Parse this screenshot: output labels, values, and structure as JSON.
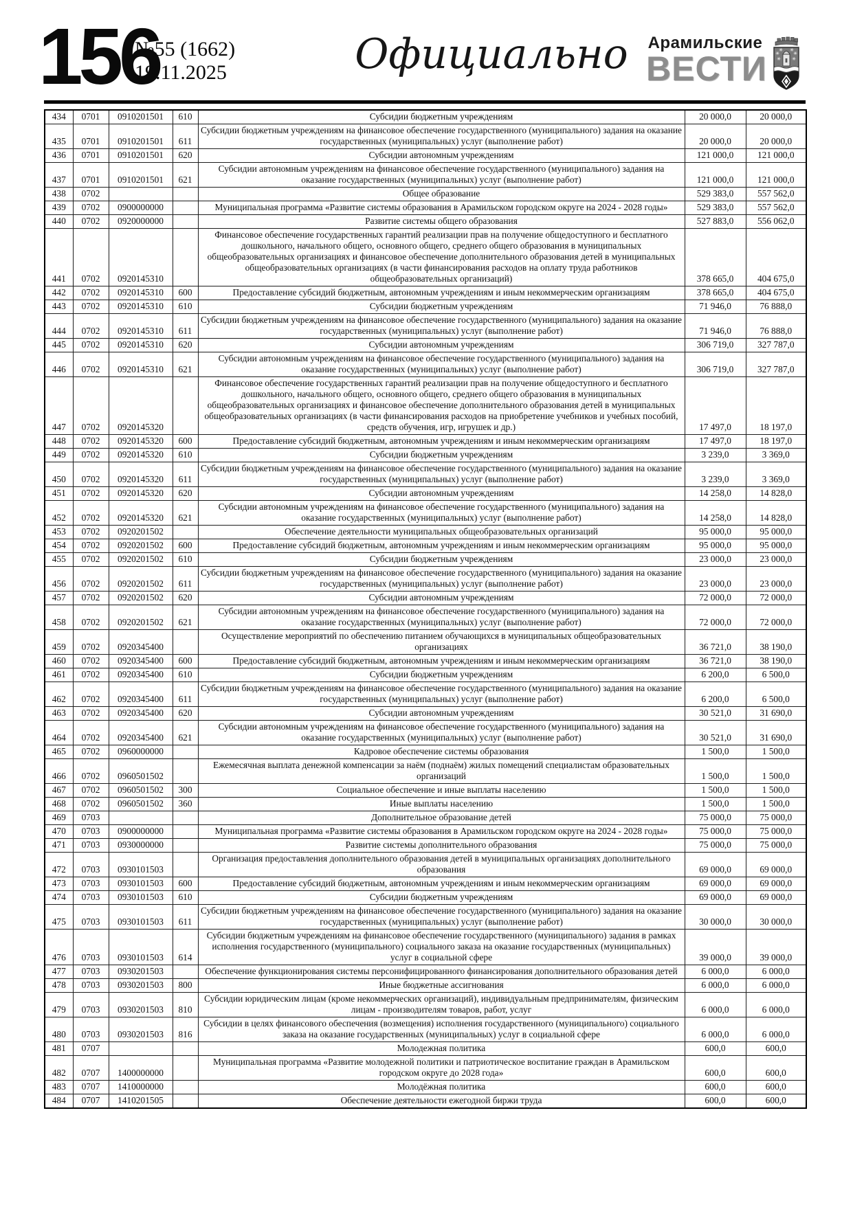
{
  "header": {
    "page_number": "156",
    "issue": "№55 (1662)",
    "date": "19.11.2025",
    "section_title": "Официально",
    "brand_top": "Арамильские",
    "brand_main": "ВЕСТИ"
  },
  "table": {
    "rows": [
      {
        "num": "434",
        "sec": "0701",
        "target": "0910201501",
        "type": "610",
        "name": "Субсидии бюджетным учреждениям",
        "sum1": "20 000,0",
        "sum2": "20 000,0"
      },
      {
        "num": "435",
        "sec": "0701",
        "target": "0910201501",
        "type": "611",
        "name": "Субсидии бюджетным учреждениям на финансовое обеспечение государственного (муниципального) задания на оказание государственных (муниципальных) услуг (выполнение работ)",
        "sum1": "20 000,0",
        "sum2": "20 000,0"
      },
      {
        "num": "436",
        "sec": "0701",
        "target": "0910201501",
        "type": "620",
        "name": "Субсидии автономным учреждениям",
        "sum1": "121 000,0",
        "sum2": "121 000,0"
      },
      {
        "num": "437",
        "sec": "0701",
        "target": "0910201501",
        "type": "621",
        "name": "Субсидии автономным учреждениям на финансовое обеспечение государственного (муниципального) задания на оказание государственных (муниципальных) услуг (выполнение работ)",
        "sum1": "121 000,0",
        "sum2": "121 000,0"
      },
      {
        "num": "438",
        "sec": "0702",
        "target": "",
        "type": "",
        "name": "Общее образование",
        "sum1": "529 383,0",
        "sum2": "557 562,0"
      },
      {
        "num": "439",
        "sec": "0702",
        "target": "0900000000",
        "type": "",
        "name": "Муниципальная программа «Развитие системы образования в Арамильском городском округе на 2024 - 2028 годы»",
        "sum1": "529 383,0",
        "sum2": "557 562,0"
      },
      {
        "num": "440",
        "sec": "0702",
        "target": "0920000000",
        "type": "",
        "name": "Развитие системы общего образования",
        "sum1": "527 883,0",
        "sum2": "556 062,0"
      },
      {
        "num": "441",
        "sec": "0702",
        "target": "0920145310",
        "type": "",
        "name": "Финансовое обеспечение государственных гарантий реализации прав на получение общедоступного и бесплатного дошкольного, начального общего, основного общего, среднего общего образования в муниципальных общеобразовательных организациях и финансовое обеспечение дополнительного образования детей в муниципальных общеобразовательных организациях (в части финансирования расходов на оплату труда работников общеобразовательных организаций)",
        "sum1": "378 665,0",
        "sum2": "404 675,0"
      },
      {
        "num": "442",
        "sec": "0702",
        "target": "0920145310",
        "type": "600",
        "name": "Предоставление субсидий бюджетным, автономным учреждениям и иным некоммерческим организациям",
        "sum1": "378 665,0",
        "sum2": "404 675,0"
      },
      {
        "num": "443",
        "sec": "0702",
        "target": "0920145310",
        "type": "610",
        "name": "Субсидии бюджетным учреждениям",
        "sum1": "71 946,0",
        "sum2": "76 888,0"
      },
      {
        "num": "444",
        "sec": "0702",
        "target": "0920145310",
        "type": "611",
        "name": "Субсидии бюджетным учреждениям на финансовое обеспечение государственного (муниципального) задания на оказание государственных (муниципальных) услуг (выполнение работ)",
        "sum1": "71 946,0",
        "sum2": "76 888,0"
      },
      {
        "num": "445",
        "sec": "0702",
        "target": "0920145310",
        "type": "620",
        "name": "Субсидии автономным учреждениям",
        "sum1": "306 719,0",
        "sum2": "327 787,0"
      },
      {
        "num": "446",
        "sec": "0702",
        "target": "0920145310",
        "type": "621",
        "name": "Субсидии автономным учреждениям на финансовое обеспечение государственного (муниципального) задания на оказание государственных (муниципальных) услуг (выполнение работ)",
        "sum1": "306 719,0",
        "sum2": "327 787,0"
      },
      {
        "num": "447",
        "sec": "0702",
        "target": "0920145320",
        "type": "",
        "name": "Финансовое обеспечение государственных гарантий реализации прав на получение общедоступного и бесплатного дошкольного, начального общего, основного общего, среднего общего образования в муниципальных общеобразовательных организациях и финансовое обеспечение дополнительного образования детей в муниципальных общеобразовательных организациях (в части финансирования расходов на приобретение учебников и учебных пособий, средств обучения, игр, игрушек и др.)",
        "sum1": "17 497,0",
        "sum2": "18 197,0"
      },
      {
        "num": "448",
        "sec": "0702",
        "target": "0920145320",
        "type": "600",
        "name": "Предоставление субсидий бюджетным, автономным учреждениям и иным некоммерческим организациям",
        "sum1": "17 497,0",
        "sum2": "18 197,0"
      },
      {
        "num": "449",
        "sec": "0702",
        "target": "0920145320",
        "type": "610",
        "name": "Субсидии бюджетным учреждениям",
        "sum1": "3 239,0",
        "sum2": "3 369,0"
      },
      {
        "num": "450",
        "sec": "0702",
        "target": "0920145320",
        "type": "611",
        "name": "Субсидии бюджетным учреждениям на финансовое обеспечение государственного (муниципального) задания на оказание государственных (муниципальных) услуг (выполнение работ)",
        "sum1": "3 239,0",
        "sum2": "3 369,0"
      },
      {
        "num": "451",
        "sec": "0702",
        "target": "0920145320",
        "type": "620",
        "name": "Субсидии автономным учреждениям",
        "sum1": "14 258,0",
        "sum2": "14 828,0"
      },
      {
        "num": "452",
        "sec": "0702",
        "target": "0920145320",
        "type": "621",
        "name": "Субсидии автономным учреждениям на финансовое обеспечение государственного (муниципального) задания на оказание государственных (муниципальных) услуг (выполнение работ)",
        "sum1": "14 258,0",
        "sum2": "14 828,0"
      },
      {
        "num": "453",
        "sec": "0702",
        "target": "0920201502",
        "type": "",
        "name": "Обеспечение деятельности муниципальных общеобразовательных организаций",
        "sum1": "95 000,0",
        "sum2": "95 000,0"
      },
      {
        "num": "454",
        "sec": "0702",
        "target": "0920201502",
        "type": "600",
        "name": "Предоставление субсидий бюджетным, автономным учреждениям и иным некоммерческим организациям",
        "sum1": "95 000,0",
        "sum2": "95 000,0"
      },
      {
        "num": "455",
        "sec": "0702",
        "target": "0920201502",
        "type": "610",
        "name": "Субсидии бюджетным учреждениям",
        "sum1": "23 000,0",
        "sum2": "23 000,0"
      },
      {
        "num": "456",
        "sec": "0702",
        "target": "0920201502",
        "type": "611",
        "name": "Субсидии бюджетным учреждениям на финансовое обеспечение государственного (муниципального) задания на оказание государственных (муниципальных) услуг (выполнение работ)",
        "sum1": "23 000,0",
        "sum2": "23 000,0"
      },
      {
        "num": "457",
        "sec": "0702",
        "target": "0920201502",
        "type": "620",
        "name": "Субсидии автономным учреждениям",
        "sum1": "72 000,0",
        "sum2": "72 000,0"
      },
      {
        "num": "458",
        "sec": "0702",
        "target": "0920201502",
        "type": "621",
        "name": "Субсидии автономным учреждениям на финансовое обеспечение государственного (муниципального) задания на оказание государственных (муниципальных) услуг (выполнение работ)",
        "sum1": "72 000,0",
        "sum2": "72 000,0"
      },
      {
        "num": "459",
        "sec": "0702",
        "target": "0920345400",
        "type": "",
        "name": "Осуществление мероприятий по обеспечению питанием обучающихся в муниципальных общеобразовательных организациях",
        "sum1": "36 721,0",
        "sum2": "38 190,0"
      },
      {
        "num": "460",
        "sec": "0702",
        "target": "0920345400",
        "type": "600",
        "name": "Предоставление субсидий бюджетным, автономным учреждениям и иным некоммерческим организациям",
        "sum1": "36 721,0",
        "sum2": "38 190,0"
      },
      {
        "num": "461",
        "sec": "0702",
        "target": "0920345400",
        "type": "610",
        "name": "Субсидии бюджетным учреждениям",
        "sum1": "6 200,0",
        "sum2": "6 500,0"
      },
      {
        "num": "462",
        "sec": "0702",
        "target": "0920345400",
        "type": "611",
        "name": "Субсидии бюджетным учреждениям на финансовое обеспечение государственного (муниципального) задания на оказание государственных (муниципальных) услуг (выполнение работ)",
        "sum1": "6 200,0",
        "sum2": "6 500,0"
      },
      {
        "num": "463",
        "sec": "0702",
        "target": "0920345400",
        "type": "620",
        "name": "Субсидии автономным учреждениям",
        "sum1": "30 521,0",
        "sum2": "31 690,0"
      },
      {
        "num": "464",
        "sec": "0702",
        "target": "0920345400",
        "type": "621",
        "name": "Субсидии автономным учреждениям на финансовое обеспечение государственного (муниципального) задания на оказание государственных (муниципальных) услуг (выполнение работ)",
        "sum1": "30 521,0",
        "sum2": "31 690,0"
      },
      {
        "num": "465",
        "sec": "0702",
        "target": "0960000000",
        "type": "",
        "name": "Кадровое обеспечение системы образования",
        "sum1": "1 500,0",
        "sum2": "1 500,0"
      },
      {
        "num": "466",
        "sec": "0702",
        "target": "0960501502",
        "type": "",
        "name": "Ежемесячная выплата денежной компенсации за наём (поднаём) жилых помещений специалистам образовательных организаций",
        "sum1": "1 500,0",
        "sum2": "1 500,0"
      },
      {
        "num": "467",
        "sec": "0702",
        "target": "0960501502",
        "type": "300",
        "name": "Социальное обеспечение и иные выплаты населению",
        "sum1": "1 500,0",
        "sum2": "1 500,0"
      },
      {
        "num": "468",
        "sec": "0702",
        "target": "0960501502",
        "type": "360",
        "name": "Иные выплаты населению",
        "sum1": "1 500,0",
        "sum2": "1 500,0"
      },
      {
        "num": "469",
        "sec": "0703",
        "target": "",
        "type": "",
        "name": "Дополнительное образование детей",
        "sum1": "75 000,0",
        "sum2": "75 000,0"
      },
      {
        "num": "470",
        "sec": "0703",
        "target": "0900000000",
        "type": "",
        "name": "Муниципальная программа «Развитие системы образования в Арамильском городском округе на 2024 - 2028 годы»",
        "sum1": "75 000,0",
        "sum2": "75 000,0"
      },
      {
        "num": "471",
        "sec": "0703",
        "target": "0930000000",
        "type": "",
        "name": "Развитие системы дополнительного образования",
        "sum1": "75 000,0",
        "sum2": "75 000,0"
      },
      {
        "num": "472",
        "sec": "0703",
        "target": "0930101503",
        "type": "",
        "name": "Организация предоставления дополнительного образования детей в муниципальных организациях дополнительного образования",
        "sum1": "69 000,0",
        "sum2": "69 000,0"
      },
      {
        "num": "473",
        "sec": "0703",
        "target": "0930101503",
        "type": "600",
        "name": "Предоставление субсидий бюджетным, автономным учреждениям и иным некоммерческим организациям",
        "sum1": "69 000,0",
        "sum2": "69 000,0"
      },
      {
        "num": "474",
        "sec": "0703",
        "target": "0930101503",
        "type": "610",
        "name": "Субсидии бюджетным учреждениям",
        "sum1": "69 000,0",
        "sum2": "69 000,0"
      },
      {
        "num": "475",
        "sec": "0703",
        "target": "0930101503",
        "type": "611",
        "name": "Субсидии бюджетным учреждениям на финансовое обеспечение государственного (муниципального) задания на оказание государственных (муниципальных) услуг (выполнение работ)",
        "sum1": "30 000,0",
        "sum2": "30 000,0"
      },
      {
        "num": "476",
        "sec": "0703",
        "target": "0930101503",
        "type": "614",
        "name": "Субсидии бюджетным учреждениям на финансовое обеспечение государственного (муниципального) задания в рамках исполнения государственного (муниципального) социального заказа на оказание государственных (муниципальных) услуг в социальной сфере",
        "sum1": "39 000,0",
        "sum2": "39 000,0"
      },
      {
        "num": "477",
        "sec": "0703",
        "target": "0930201503",
        "type": "",
        "name": "Обеспечение функционирования системы персонифицированного финансирования дополнительного образования детей",
        "sum1": "6 000,0",
        "sum2": "6 000,0"
      },
      {
        "num": "478",
        "sec": "0703",
        "target": "0930201503",
        "type": "800",
        "name": "Иные бюджетные ассигнования",
        "sum1": "6 000,0",
        "sum2": "6 000,0"
      },
      {
        "num": "479",
        "sec": "0703",
        "target": "0930201503",
        "type": "810",
        "name": "Субсидии юридическим лицам (кроме некоммерческих организаций), индивидуальным предпринимателям, физическим лицам - производителям товаров, работ, услуг",
        "sum1": "6 000,0",
        "sum2": "6 000,0"
      },
      {
        "num": "480",
        "sec": "0703",
        "target": "0930201503",
        "type": "816",
        "name": "Субсидии в целях финансового обеспечения (возмещения) исполнения государственного (муниципального) социального заказа на оказание государственных (муниципальных) услуг в социальной сфере",
        "sum1": "6 000,0",
        "sum2": "6 000,0"
      },
      {
        "num": "481",
        "sec": "0707",
        "target": "",
        "type": "",
        "name": "Молодежная политика",
        "sum1": "600,0",
        "sum2": "600,0"
      },
      {
        "num": "482",
        "sec": "0707",
        "target": "1400000000",
        "type": "",
        "name": "Муниципальная программа «Развитие молодежной политики и патриотическое воспитание граждан в Арамильском городском округе до 2028 года»",
        "sum1": "600,0",
        "sum2": "600,0"
      },
      {
        "num": "483",
        "sec": "0707",
        "target": "1410000000",
        "type": "",
        "name": "Молодёжная политика",
        "sum1": "600,0",
        "sum2": "600,0"
      },
      {
        "num": "484",
        "sec": "0707",
        "target": "1410201505",
        "type": "",
        "name": "Обеспечение деятельности ежегодной биржи труда",
        "sum1": "600,0",
        "sum2": "600,0"
      }
    ]
  }
}
